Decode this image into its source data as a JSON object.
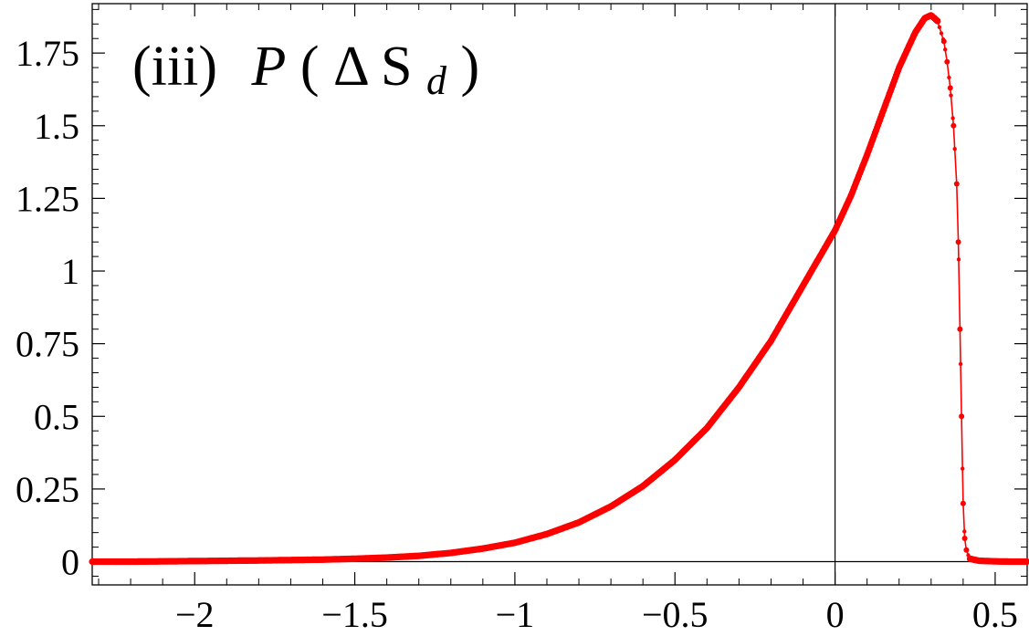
{
  "chart_data": {
    "type": "line",
    "title": "(iii)  P(ΔS_d)",
    "title_parts": {
      "panel": "(iii)",
      "func": "P",
      "open": "(",
      "delta": "Δ",
      "var": "S",
      "sub": "d",
      "close": ")"
    },
    "xlabel": "",
    "ylabel": "",
    "xlim": [
      -2.32,
      0.6
    ],
    "ylim": [
      -0.08,
      1.92
    ],
    "x_ticks": [
      -2,
      -1.5,
      -1,
      -0.5,
      0,
      0.5
    ],
    "x_tick_labels": [
      "−2",
      "−1.5",
      "−1",
      "−0.5",
      "0",
      "0.5"
    ],
    "y_ticks": [
      0,
      0.25,
      0.5,
      0.75,
      1,
      1.25,
      1.5,
      1.75
    ],
    "y_tick_labels": [
      "0",
      "0.25",
      "0.5",
      "0.75",
      "1",
      "1.25",
      "1.5",
      "1.75"
    ],
    "grid": false,
    "line_color": "#ff0000",
    "axis_color": "#000000",
    "series": [
      {
        "x": [
          -2.32,
          -2.2,
          -2.0,
          -1.8,
          -1.6,
          -1.5,
          -1.4,
          -1.3,
          -1.2,
          -1.1,
          -1.0,
          -0.9,
          -0.8,
          -0.7,
          -0.6,
          -0.5,
          -0.4,
          -0.3,
          -0.2,
          -0.1,
          0.0,
          0.05,
          0.1,
          0.15,
          0.2,
          0.25,
          0.28,
          0.3,
          0.32,
          0.34,
          0.35,
          0.36,
          0.37,
          0.38,
          0.385,
          0.39,
          0.395,
          0.4,
          0.405,
          0.41,
          0.42,
          0.45,
          0.5,
          0.55,
          0.6
        ],
        "y": [
          0,
          0,
          0.002,
          0.004,
          0.007,
          0.01,
          0.014,
          0.02,
          0.03,
          0.045,
          0.065,
          0.095,
          0.135,
          0.19,
          0.26,
          0.35,
          0.46,
          0.6,
          0.76,
          0.95,
          1.14,
          1.26,
          1.4,
          1.55,
          1.7,
          1.82,
          1.87,
          1.88,
          1.86,
          1.79,
          1.72,
          1.63,
          1.5,
          1.3,
          1.1,
          0.8,
          0.5,
          0.2,
          0.08,
          0.04,
          0.01,
          0.003,
          0.001,
          0.0,
          0.0
        ]
      }
    ]
  }
}
